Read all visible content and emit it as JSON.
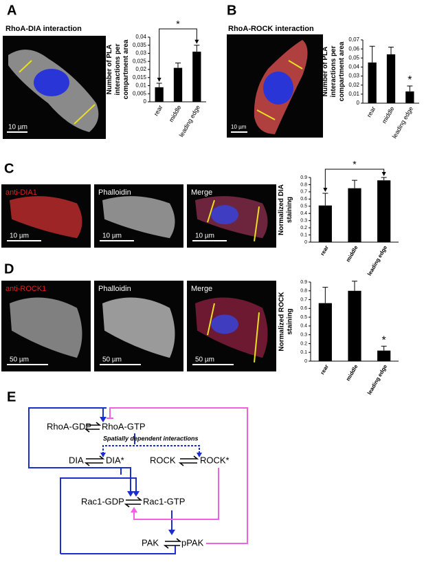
{
  "panels": {
    "a": {
      "label": "A",
      "caption": "RhoA-DIA interaction",
      "scale": "10 µm"
    },
    "b": {
      "label": "B",
      "caption": "RhoA-ROCK  interaction",
      "scale": "10 µm"
    },
    "c": {
      "label": "C",
      "images": [
        "anti-DIA1",
        "Phalloidin",
        "Merge"
      ],
      "scales": [
        "10 µm",
        "10 µm",
        "10 µm"
      ]
    },
    "d": {
      "label": "D",
      "images": [
        "anti-ROCK1",
        "Phalloidin",
        "Merge"
      ],
      "scales": [
        "50 µm",
        "50 µm",
        "50 µm"
      ]
    },
    "e": {
      "label": "E"
    }
  },
  "chart_data": [
    {
      "type": "bar",
      "ylabel": "Number of PLA interactions per compartment area",
      "categories": [
        "rear",
        "middle",
        "leading edge"
      ],
      "values": [
        0.009,
        0.021,
        0.031
      ],
      "errors": [
        0.0025,
        0.003,
        0.004
      ],
      "color": "#000000",
      "ylim": [
        0,
        0.04
      ],
      "yticks": [
        0,
        {
          "value": 0.005,
          "label": "0,005"
        },
        {
          "value": 0.01,
          "label": "0,01"
        },
        {
          "value": 0.015,
          "label": "0,015"
        },
        {
          "value": 0.02,
          "label": "0,02"
        },
        {
          "value": 0.025,
          "label": "0,025"
        },
        {
          "value": 0.03,
          "label": "0,03"
        },
        {
          "value": 0.035,
          "label": "0,035"
        },
        {
          "value": 0.04,
          "label": "0,04"
        }
      ],
      "annotation": "*",
      "annotation_style": "bracket"
    },
    {
      "type": "bar",
      "ylabel": "Number of PLA interactions per compartment area",
      "categories": [
        "rear",
        "middle",
        "leading edge"
      ],
      "values": [
        0.045,
        0.054,
        0.013
      ],
      "errors": [
        0.018,
        0.008,
        0.006
      ],
      "color": "#000000",
      "ylim": [
        0,
        0.07
      ],
      "yticks": [
        0,
        {
          "value": 0.01,
          "label": "0,01"
        },
        {
          "value": 0.02,
          "label": "0,02"
        },
        {
          "value": 0.03,
          "label": "0,03"
        },
        {
          "value": 0.04,
          "label": "0,04"
        },
        {
          "value": 0.05,
          "label": "0,05"
        },
        {
          "value": 0.06,
          "label": "0,06"
        },
        {
          "value": 0.07,
          "label": "0,07"
        }
      ],
      "annotation": "*",
      "annotation_style": "star"
    },
    {
      "type": "bar",
      "ylabel": "Normalized DIA staining",
      "categories": [
        "rear",
        "middle",
        "leading edge"
      ],
      "values": [
        0.51,
        0.75,
        0.86
      ],
      "errors": [
        0.17,
        0.11,
        0.04
      ],
      "color": "#000000",
      "ylim": [
        0,
        0.9
      ],
      "yticks": [
        0,
        0.1,
        0.2,
        0.3,
        0.4,
        0.5,
        0.6,
        0.7,
        0.8,
        0.9
      ],
      "annotation": "*",
      "annotation_style": "bracket"
    },
    {
      "type": "bar",
      "ylabel": "Normalized ROCK staining",
      "categories": [
        "rear",
        "middle",
        "leading edge"
      ],
      "values": [
        0.66,
        0.8,
        0.12
      ],
      "errors": [
        0.18,
        0.11,
        0.05
      ],
      "color": "#000000",
      "ylim": [
        0,
        0.9
      ],
      "yticks": [
        0,
        0.1,
        0.2,
        0.3,
        0.4,
        0.5,
        0.6,
        0.7,
        0.8,
        0.9
      ],
      "annotation": "*",
      "annotation_style": "star"
    }
  ],
  "diagram": {
    "nodes": [
      "RhoA-GDP",
      "RhoA-GTP",
      "DIA",
      "DIA*",
      "ROCK",
      "ROCK*",
      "Rac1-GDP",
      "Rac1-GTP",
      "PAK",
      "pPAK"
    ],
    "note": "Spatially dependent interactions"
  }
}
